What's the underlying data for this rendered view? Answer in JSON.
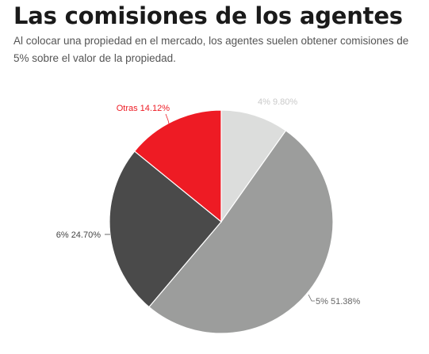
{
  "title": "Las comisiones de los agentes",
  "subtitle": "Al colocar una propiedad en el mercado, los agentes suelen obtener comisiones de 5% sobre el valor de la propiedad.",
  "chart_data": {
    "type": "pie",
    "title": "Las comisiones de los agentes",
    "slices": [
      {
        "label": "4%",
        "value": 9.8,
        "display": "4% 9.80%",
        "color": "#dcdddc",
        "label_color": "#c9c9c9"
      },
      {
        "label": "5%",
        "value": 51.38,
        "display": "5% 51.38%",
        "color": "#9c9d9c",
        "label_color": "#666666"
      },
      {
        "label": "6%",
        "value": 24.7,
        "display": "6% 24.70%",
        "color": "#4a4a4a",
        "label_color": "#444444"
      },
      {
        "label": "Otras",
        "value": 14.12,
        "display": "Otras 14.12%",
        "color": "#ee1b24",
        "label_color": "#ee1b24"
      }
    ],
    "start_angle": "12 o'clock",
    "direction": "clockwise",
    "legend": "none"
  }
}
